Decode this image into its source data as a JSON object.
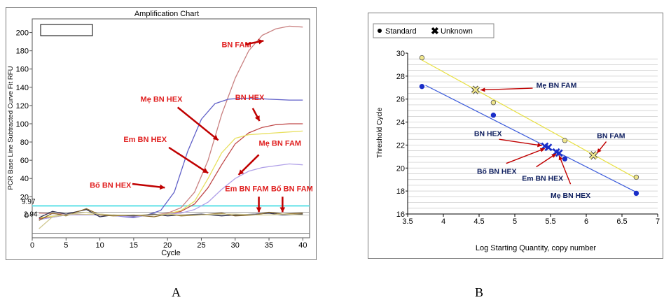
{
  "panels": {
    "a": "A",
    "b": "B"
  },
  "chart_data": [
    {
      "id": "A",
      "type": "line",
      "title": "Amplification Chart",
      "xlabel": "Cycle",
      "ylabel": "PCR Base Line Subtracted Curve Fit RFU",
      "xlim": [
        0,
        41
      ],
      "ylim": [
        -25,
        215
      ],
      "xticks": [
        0,
        5,
        10,
        15,
        20,
        25,
        30,
        35,
        40
      ],
      "yticks": [
        0,
        20,
        40,
        60,
        80,
        100,
        120,
        140,
        160,
        180,
        200
      ],
      "thresholds": [
        {
          "label": "9.97",
          "value": 9.97,
          "color": "#5fe1e8"
        },
        {
          "label": "2.94",
          "value": 2.94,
          "color": "#a9a9a9"
        }
      ],
      "lower_line_value": -20,
      "series": [
        {
          "color": "#c98080",
          "x": [
            1,
            5,
            10,
            15,
            18,
            20,
            22,
            24,
            26,
            28,
            30,
            32,
            34,
            36,
            38,
            40
          ],
          "y": [
            2,
            1,
            0,
            -1,
            0,
            2,
            8,
            25,
            60,
            110,
            150,
            180,
            197,
            204,
            207,
            206
          ]
        },
        {
          "color": "#6060c8",
          "x": [
            1,
            5,
            10,
            15,
            17,
            19,
            21,
            23,
            25,
            27,
            29,
            31,
            33,
            35,
            38,
            40
          ],
          "y": [
            -5,
            0,
            1,
            -3,
            0,
            5,
            25,
            70,
            105,
            122,
            127,
            128,
            128,
            127,
            126,
            126
          ]
        },
        {
          "color": "#c04a4a",
          "x": [
            1,
            5,
            10,
            15,
            18,
            20,
            22,
            24,
            26,
            28,
            30,
            32,
            34,
            36,
            38,
            40
          ],
          "y": [
            -4,
            0,
            0,
            -1,
            0,
            1,
            4,
            12,
            30,
            55,
            78,
            90,
            96,
            99,
            100,
            100
          ]
        },
        {
          "color": "#e8e060",
          "x": [
            1,
            5,
            10,
            15,
            18,
            20,
            22,
            24,
            26,
            28,
            30,
            32,
            34,
            36,
            38,
            40
          ],
          "y": [
            -3,
            0,
            1,
            -2,
            0,
            1,
            5,
            15,
            40,
            68,
            84,
            88,
            89,
            90,
            91,
            92
          ]
        },
        {
          "color": "#b0a0e8",
          "x": [
            1,
            5,
            10,
            15,
            18,
            20,
            22,
            24,
            26,
            28,
            30,
            32,
            34,
            36,
            38,
            40
          ],
          "y": [
            -5,
            0,
            0,
            -2,
            0,
            1,
            2,
            6,
            14,
            28,
            40,
            48,
            52,
            54,
            56,
            55
          ]
        },
        {
          "color": "#303050",
          "x": [
            1,
            3,
            5,
            8,
            10,
            12,
            15,
            18,
            20,
            22,
            25,
            28,
            30,
            33,
            35,
            37,
            40
          ],
          "y": [
            -3,
            4,
            1,
            6,
            -2,
            0,
            -1,
            1,
            -1,
            0,
            1,
            -1,
            0,
            1,
            2,
            0,
            1
          ]
        },
        {
          "color": "#8a6a2a",
          "x": [
            1,
            3,
            5,
            8,
            10,
            12,
            15,
            18,
            20,
            22,
            25,
            28,
            30,
            33,
            35,
            37,
            40
          ],
          "y": [
            -6,
            2,
            -1,
            7,
            0,
            -1,
            0,
            -2,
            1,
            -1,
            0,
            2,
            -1,
            0,
            3,
            1,
            2
          ]
        },
        {
          "color": "#d0c890",
          "x": [
            1,
            3,
            5,
            8,
            10,
            12,
            15,
            18,
            20,
            22,
            25,
            28,
            30,
            33,
            35,
            37,
            40
          ],
          "y": [
            -15,
            -2,
            0,
            3,
            1,
            0,
            0,
            0,
            1,
            0,
            0,
            1,
            1,
            0,
            0,
            1,
            0
          ]
        }
      ],
      "annotations": [
        {
          "text": "BN FAM"
        },
        {
          "text": "Mẹ BN HEX"
        },
        {
          "text": "BN HEX"
        },
        {
          "text": "Em BN HEX"
        },
        {
          "text": "Mẹ BN FAM"
        },
        {
          "text": "Bố BN HEX"
        },
        {
          "text": "Em BN FAM"
        },
        {
          "text": "Bố BN FAM"
        }
      ]
    },
    {
      "id": "B",
      "type": "scatter",
      "xlabel": "Log Starting Quantity, copy number",
      "ylabel": "Threshold Cycle",
      "xlim": [
        3.5,
        7
      ],
      "ylim": [
        16,
        30
      ],
      "xticks": [
        3.5,
        4,
        4.5,
        5,
        5.5,
        6,
        6.5,
        7
      ],
      "yticks": [
        16,
        18,
        20,
        22,
        24,
        26,
        28,
        30
      ],
      "legend": [
        "Standard",
        "Unknown"
      ],
      "legend_position": "top-left",
      "series": [
        {
          "color": "#f0e68c",
          "line": {
            "x": [
              3.7,
              6.7
            ],
            "y": [
              29.4,
              19.1
            ],
            "color": "#e8e040"
          },
          "standards": {
            "x": [
              3.7,
              4.7,
              5.7,
              6.7
            ],
            "y": [
              29.6,
              25.7,
              22.4,
              19.2
            ]
          },
          "unknowns": {
            "x": [
              4.45,
              6.1
            ],
            "y": [
              26.8,
              21.1
            ]
          }
        },
        {
          "color": "#1a2ec8",
          "line": {
            "x": [
              3.75,
              6.7
            ],
            "y": [
              27.2,
              17.9
            ],
            "color": "#3b5bdb"
          },
          "standards": {
            "x": [
              3.7,
              4.7,
              5.7,
              6.7
            ],
            "y": [
              27.1,
              24.6,
              20.8,
              17.8
            ]
          },
          "unknowns": {
            "x": [
              5.42,
              5.47,
              5.58,
              5.62
            ],
            "y": [
              21.9,
              21.8,
              21.4,
              21.3
            ]
          }
        }
      ],
      "annotations": [
        {
          "text": "Mẹ BN FAM"
        },
        {
          "text": "BN FAM"
        },
        {
          "text": "BN HEX"
        },
        {
          "text": "Bố BN HEX"
        },
        {
          "text": "Em BN HEX"
        },
        {
          "text": "Mẹ BN HEX"
        }
      ]
    }
  ]
}
